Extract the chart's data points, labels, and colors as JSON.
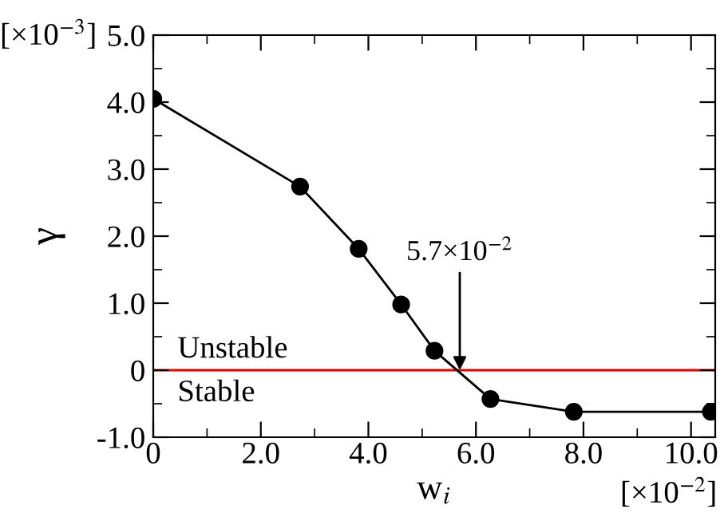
{
  "chart_data": {
    "type": "line",
    "xlabel": "w$_{i}$",
    "ylabel": "γ",
    "x": [
      0,
      2.73,
      3.82,
      4.61,
      5.23,
      6.27,
      7.82,
      10.37
    ],
    "series": [
      {
        "color": "#000000",
        "values": [
          4.05,
          2.74,
          1.81,
          0.98,
          0.29,
          -0.43,
          -0.62,
          -0.62
        ]
      }
    ],
    "marker": "circle",
    "line_style": "solid",
    "grid": false,
    "legend": false,
    "xlim": [
      0,
      10.45
    ],
    "ylim": [
      -1.0,
      5.0
    ],
    "xticks": [
      0,
      {
        "value": 1,
        "label": null
      },
      {
        "value": 2,
        "label": "2.0"
      },
      {
        "value": 3,
        "label": null
      },
      {
        "value": 4,
        "label": "4.0"
      },
      {
        "value": 5,
        "label": null
      },
      {
        "value": 6,
        "label": "6.0"
      },
      {
        "value": 7,
        "label": null
      },
      {
        "value": 8,
        "label": "8.0"
      },
      {
        "value": 9,
        "label": null
      },
      {
        "value": 10,
        "label": "10.0"
      }
    ],
    "yticks": [
      {
        "value": -1,
        "label": "-1.0"
      },
      {
        "value": -0.5,
        "label": null
      },
      0,
      {
        "value": 0.5,
        "label": null
      },
      {
        "value": 1,
        "label": "1.0"
      },
      {
        "value": 1.5,
        "label": null
      },
      {
        "value": 2,
        "label": "2.0"
      },
      {
        "value": 2.5,
        "label": null
      },
      {
        "value": 3,
        "label": "3.0"
      },
      {
        "value": 3.5,
        "label": null
      },
      {
        "value": 4,
        "label": "4.0"
      },
      {
        "value": 4.5,
        "label": null
      },
      {
        "value": 5,
        "label": "5.0"
      }
    ],
    "ref_lines": [
      {
        "axis": "y",
        "value": 0,
        "color": "#e00000",
        "line_style": "solid"
      }
    ],
    "annotations": [
      {
        "text": "5.7×10$^{−2}$",
        "x": 5.7,
        "y": 0
      },
      "Unstable",
      "Stable",
      "[×10$^{−3}$]",
      "[×10$^{−2}$]"
    ]
  }
}
